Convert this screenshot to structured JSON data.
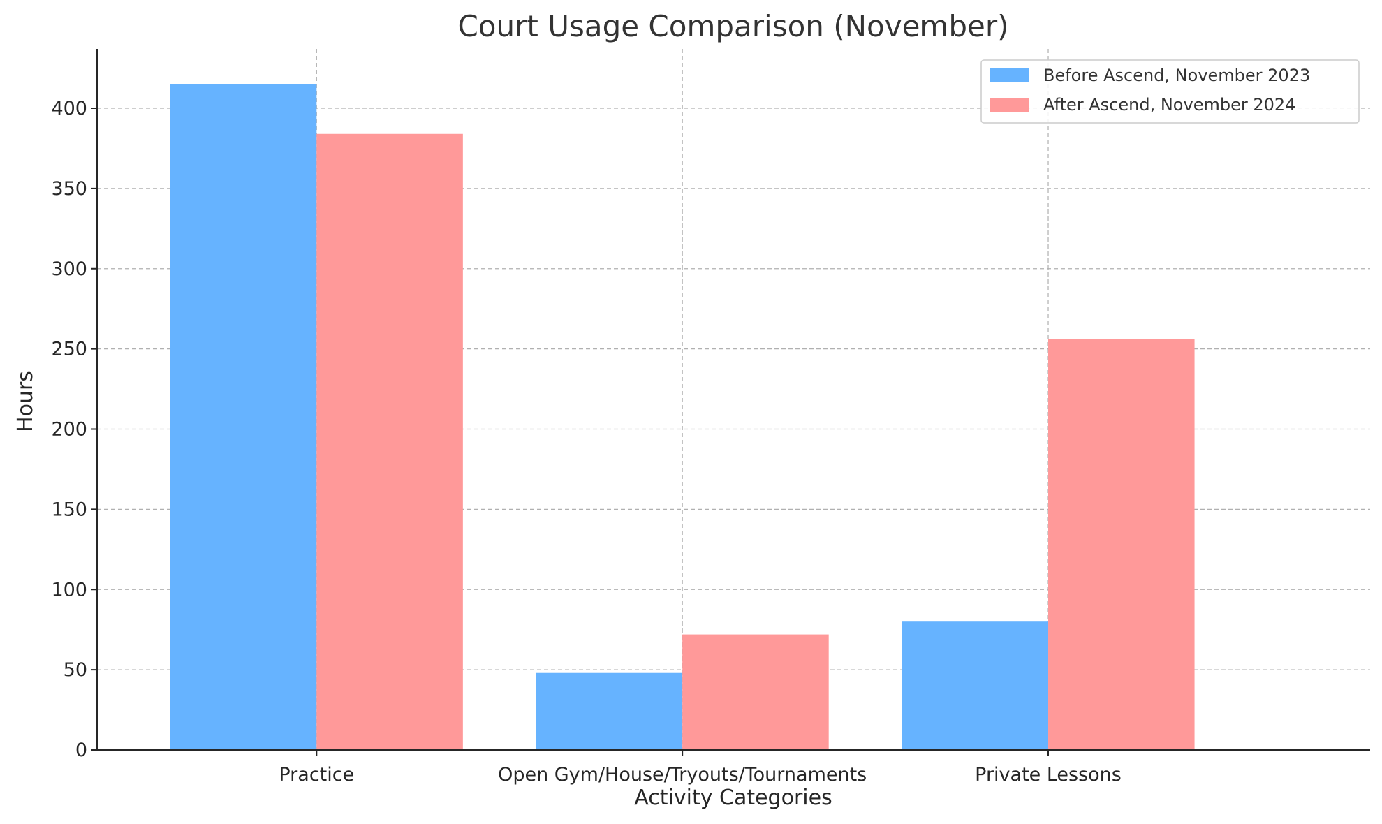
{
  "chart_data": {
    "type": "bar",
    "title": "Court Usage Comparison (November)",
    "xlabel": "Activity Categories",
    "ylabel": "Hours",
    "categories": [
      "Practice",
      "Open Gym/House/Tryouts/Tournaments",
      "Private Lessons"
    ],
    "series": [
      {
        "name": "Before Ascend, November 2023",
        "color": "#66b3ff",
        "values": [
          415,
          48,
          80
        ]
      },
      {
        "name": "After Ascend, November 2024",
        "color": "#ff9999",
        "values": [
          384,
          72,
          256
        ]
      }
    ],
    "ylim": [
      0,
      437
    ],
    "yticks": [
      0,
      50,
      100,
      150,
      200,
      250,
      300,
      350,
      400
    ],
    "grid": true,
    "legend_position": "top-right"
  }
}
